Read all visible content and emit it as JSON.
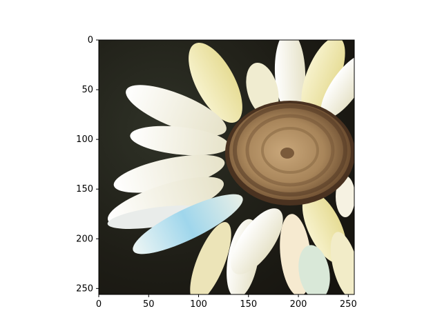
{
  "chart_data": {
    "type": "image",
    "image_width": 256,
    "image_height": 256,
    "xlim": [
      0,
      256
    ],
    "ylim": [
      256,
      0
    ],
    "grid": false,
    "x_ticks": [
      {
        "value": 0,
        "label": "0"
      },
      {
        "value": 50,
        "label": "50"
      },
      {
        "value": 100,
        "label": "100"
      },
      {
        "value": 150,
        "label": "150"
      },
      {
        "value": 200,
        "label": "200"
      },
      {
        "value": 250,
        "label": "250"
      }
    ],
    "y_ticks": [
      {
        "value": 0,
        "label": "0"
      },
      {
        "value": 50,
        "label": "50"
      },
      {
        "value": 100,
        "label": "100"
      },
      {
        "value": 150,
        "label": "150"
      },
      {
        "value": 200,
        "label": "200"
      },
      {
        "value": 250,
        "label": "250"
      }
    ],
    "colors": {
      "background": "#1e1d16",
      "petal": "#f4f0dc",
      "petal_yellow": "#ece6a6",
      "petal_blue": "#9fd6ec",
      "center": "#a8855a",
      "center_dark": "#5e4026"
    }
  }
}
